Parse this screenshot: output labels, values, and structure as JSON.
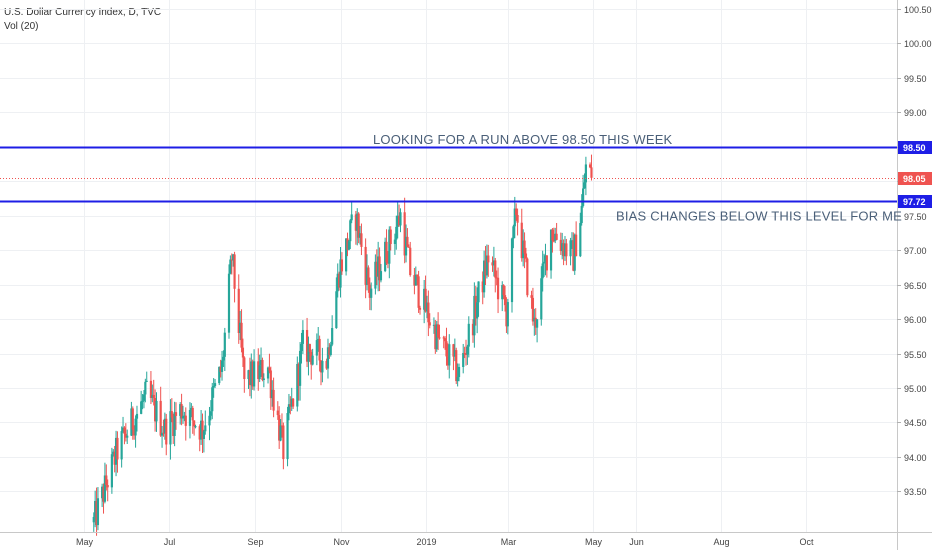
{
  "header": {
    "symbol_line": "U.S. Dollar Currency Index, D, TVC",
    "volume_line": "Vol (20)"
  },
  "chart_data": {
    "type": "candlestick",
    "x_ticks": [
      "May",
      "Jul",
      "Sep",
      "Nov",
      "2019",
      "Mar",
      "May",
      "Jun",
      "Aug",
      "Oct"
    ],
    "y_ticks": [
      "93.50",
      "94.00",
      "94.50",
      "95.00",
      "95.50",
      "96.00",
      "96.50",
      "97.00",
      "97.50",
      "98.00",
      "98.50",
      "99.00",
      "99.50",
      "100.00",
      "100.50"
    ],
    "ylim": [
      93.05,
      100.75
    ],
    "x_range": [
      "2018-05-01",
      "2019-10-31"
    ],
    "last_price": "98.05",
    "levels": [
      {
        "value": 98.5,
        "label": "98.50",
        "color": "#1e1ee6"
      },
      {
        "value": 97.72,
        "label": "97.72",
        "color": "#1e1ee6"
      }
    ],
    "annotations": [
      {
        "text": "LOOKING FOR A RUN ABOVE 98.50 THIS WEEK",
        "anchor_level": 98.5,
        "placement": "above"
      },
      {
        "text": "BIAS CHANGES BELOW THIS LEVEL FOR ME",
        "anchor_level": 97.72,
        "placement": "below"
      }
    ],
    "series_key_points": [
      {
        "date": "2018-05-08",
        "close": 93.05
      },
      {
        "date": "2018-05-25",
        "close": 94.1
      },
      {
        "date": "2018-06-15",
        "close": 94.9
      },
      {
        "date": "2018-06-28",
        "close": 94.4
      },
      {
        "date": "2018-07-10",
        "close": 94.7
      },
      {
        "date": "2018-07-25",
        "close": 94.4
      },
      {
        "date": "2018-08-08",
        "close": 95.3
      },
      {
        "date": "2018-08-15",
        "close": 96.9
      },
      {
        "date": "2018-08-24",
        "close": 95.1
      },
      {
        "date": "2018-09-10",
        "close": 95.3
      },
      {
        "date": "2018-09-21",
        "close": 94.1
      },
      {
        "date": "2018-10-05",
        "close": 95.6
      },
      {
        "date": "2018-10-22",
        "close": 95.4
      },
      {
        "date": "2018-10-31",
        "close": 96.7
      },
      {
        "date": "2018-11-12",
        "close": 97.5
      },
      {
        "date": "2018-11-22",
        "close": 96.4
      },
      {
        "date": "2018-12-14",
        "close": 97.5
      },
      {
        "date": "2018-12-21",
        "close": 96.7
      },
      {
        "date": "2019-01-10",
        "close": 95.7
      },
      {
        "date": "2019-01-25",
        "close": 95.2
      },
      {
        "date": "2019-02-15",
        "close": 96.9
      },
      {
        "date": "2019-02-28",
        "close": 96.1
      },
      {
        "date": "2019-03-07",
        "close": 97.6
      },
      {
        "date": "2019-03-20",
        "close": 95.9
      },
      {
        "date": "2019-04-01",
        "close": 97.3
      },
      {
        "date": "2019-04-17",
        "close": 96.9
      },
      {
        "date": "2019-04-23",
        "close": 97.6
      },
      {
        "date": "2019-04-26",
        "close": 98.2
      },
      {
        "date": "2019-04-30",
        "close": 98.05
      }
    ],
    "grid": true,
    "price_axis": "right"
  }
}
